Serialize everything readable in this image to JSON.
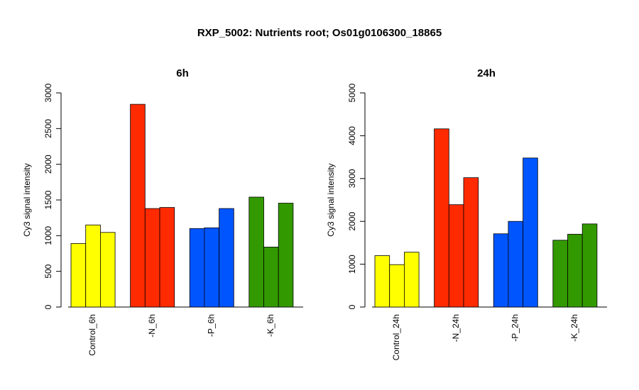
{
  "figure": {
    "title": "RXP_5002: Nutrients root; Os01g0106300_18865"
  },
  "colors": {
    "control": "#ffff00",
    "n": "#ff2a00",
    "p": "#0055ff",
    "k": "#339900"
  },
  "chart_data": [
    {
      "type": "bar",
      "title": "6h",
      "ylabel": "Cy3 signal intensity",
      "xlabel": "",
      "ylim": [
        0,
        3000
      ],
      "yticks": [
        0,
        500,
        1000,
        1500,
        2000,
        2500,
        3000
      ],
      "grid": false,
      "categories": [
        "Control_6h",
        "-N_6h",
        "-P_6h",
        "-K_6h"
      ],
      "groups": [
        {
          "category": "Control_6h",
          "color_key": "control",
          "values": [
            890,
            1150,
            1045
          ]
        },
        {
          "category": "-N_6h",
          "color_key": "n",
          "values": [
            2840,
            1380,
            1395
          ]
        },
        {
          "category": "-P_6h",
          "color_key": "p",
          "values": [
            1100,
            1110,
            1380
          ]
        },
        {
          "category": "-K_6h",
          "color_key": "k",
          "values": [
            1540,
            840,
            1455
          ]
        }
      ]
    },
    {
      "type": "bar",
      "title": "24h",
      "ylabel": "Cy3 signal intensity",
      "xlabel": "",
      "ylim": [
        0,
        5000
      ],
      "yticks": [
        0,
        1000,
        2000,
        3000,
        4000,
        5000
      ],
      "grid": false,
      "categories": [
        "Control_24h",
        "-N_24h",
        "-P_24h",
        "-K_24h"
      ],
      "groups": [
        {
          "category": "Control_24h",
          "color_key": "control",
          "values": [
            1200,
            990,
            1280
          ]
        },
        {
          "category": "-N_24h",
          "color_key": "n",
          "values": [
            4160,
            2390,
            3020
          ]
        },
        {
          "category": "-P_24h",
          "color_key": "p",
          "values": [
            1710,
            2000,
            3480
          ]
        },
        {
          "category": "-K_24h",
          "color_key": "k",
          "values": [
            1560,
            1700,
            1940
          ]
        }
      ]
    }
  ]
}
